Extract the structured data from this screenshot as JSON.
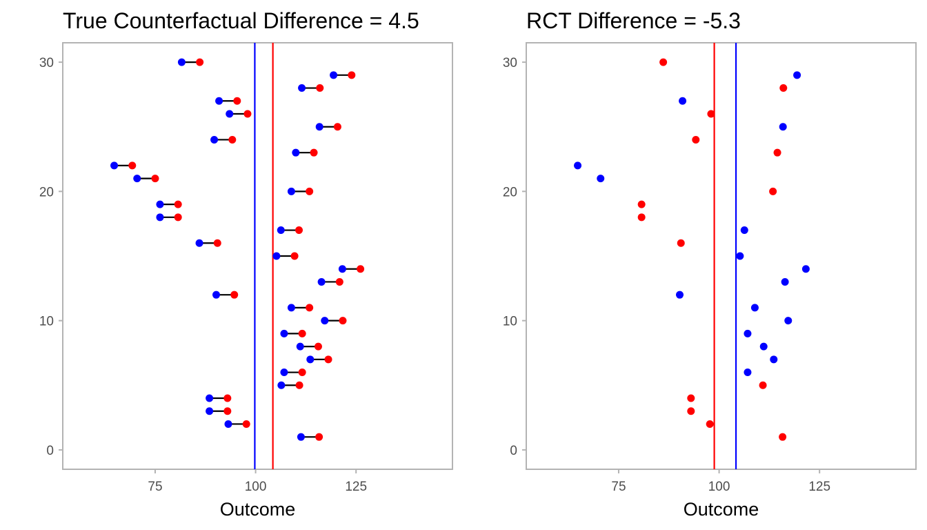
{
  "colors": {
    "control": "#0000ff",
    "treated": "#ff0000",
    "segment": "#000000",
    "frame": "#b3b3b3"
  },
  "chart_data": [
    {
      "type": "dumbbell",
      "title": "True Counterfactual Difference = 4.5",
      "xlabel": "Outcome",
      "ylabel": "",
      "xlim": [
        52,
        149
      ],
      "ylim": [
        -1.5,
        31.5
      ],
      "xticks": [
        75,
        100,
        125
      ],
      "yticks": [
        0,
        10,
        20,
        30
      ],
      "grid": false,
      "vlines": [
        {
          "x": 99.8,
          "color": "#0000ff"
        },
        {
          "x": 104.3,
          "color": "#ff0000"
        }
      ],
      "series": [
        {
          "color": "#0000ff",
          "points": [
            {
              "y": 1,
              "x": 111.3
            },
            {
              "y": 2,
              "x": 93.2
            },
            {
              "y": 3,
              "x": 88.5
            },
            {
              "y": 4,
              "x": 88.5
            },
            {
              "y": 5,
              "x": 106.4
            },
            {
              "y": 6,
              "x": 107.1
            },
            {
              "y": 7,
              "x": 113.6
            },
            {
              "y": 8,
              "x": 111.1
            },
            {
              "y": 9,
              "x": 107.1
            },
            {
              "y": 10,
              "x": 117.2
            },
            {
              "y": 11,
              "x": 108.9
            },
            {
              "y": 12,
              "x": 90.2
            },
            {
              "y": 13,
              "x": 116.4
            },
            {
              "y": 14,
              "x": 121.6
            },
            {
              "y": 15,
              "x": 105.2
            },
            {
              "y": 16,
              "x": 86.0
            },
            {
              "y": 17,
              "x": 106.3
            },
            {
              "y": 18,
              "x": 76.2
            },
            {
              "y": 19,
              "x": 76.2
            },
            {
              "y": 20,
              "x": 108.9
            },
            {
              "y": 21,
              "x": 70.5
            },
            {
              "y": 22,
              "x": 64.8
            },
            {
              "y": 23,
              "x": 110.0
            },
            {
              "y": 24,
              "x": 89.7
            },
            {
              "y": 25,
              "x": 115.9
            },
            {
              "y": 26,
              "x": 93.5
            },
            {
              "y": 27,
              "x": 90.9
            },
            {
              "y": 28,
              "x": 111.5
            },
            {
              "y": 29,
              "x": 119.4
            },
            {
              "y": 30,
              "x": 81.6
            }
          ]
        },
        {
          "color": "#ff0000",
          "points": [
            {
              "y": 1,
              "x": 115.8
            },
            {
              "y": 2,
              "x": 97.7
            },
            {
              "y": 3,
              "x": 93.0
            },
            {
              "y": 4,
              "x": 93.0
            },
            {
              "y": 5,
              "x": 110.9
            },
            {
              "y": 6,
              "x": 111.6
            },
            {
              "y": 7,
              "x": 118.1
            },
            {
              "y": 8,
              "x": 115.6
            },
            {
              "y": 9,
              "x": 111.6
            },
            {
              "y": 10,
              "x": 121.7
            },
            {
              "y": 11,
              "x": 113.4
            },
            {
              "y": 12,
              "x": 94.7
            },
            {
              "y": 13,
              "x": 120.9
            },
            {
              "y": 14,
              "x": 126.1
            },
            {
              "y": 15,
              "x": 109.7
            },
            {
              "y": 16,
              "x": 90.5
            },
            {
              "y": 17,
              "x": 110.8
            },
            {
              "y": 18,
              "x": 80.7
            },
            {
              "y": 19,
              "x": 80.7
            },
            {
              "y": 20,
              "x": 113.4
            },
            {
              "y": 21,
              "x": 75.0
            },
            {
              "y": 22,
              "x": 69.3
            },
            {
              "y": 23,
              "x": 114.5
            },
            {
              "y": 24,
              "x": 94.2
            },
            {
              "y": 25,
              "x": 120.4
            },
            {
              "y": 26,
              "x": 98.0
            },
            {
              "y": 27,
              "x": 95.4
            },
            {
              "y": 28,
              "x": 116.0
            },
            {
              "y": 29,
              "x": 123.9
            },
            {
              "y": 30,
              "x": 86.1
            }
          ]
        }
      ]
    },
    {
      "type": "scatter",
      "title": "RCT Difference = -5.3",
      "xlabel": "Outcome",
      "ylabel": "",
      "xlim": [
        52,
        149
      ],
      "ylim": [
        -1.5,
        31.5
      ],
      "xticks": [
        75,
        100,
        125
      ],
      "yticks": [
        0,
        10,
        20,
        30
      ],
      "grid": false,
      "vlines": [
        {
          "x": 98.8,
          "color": "#ff0000"
        },
        {
          "x": 104.2,
          "color": "#0000ff"
        }
      ],
      "series": [
        {
          "color": "#0000ff",
          "points": [
            {
              "y": 6,
              "x": 107.1
            },
            {
              "y": 7,
              "x": 113.6
            },
            {
              "y": 8,
              "x": 111.1
            },
            {
              "y": 9,
              "x": 107.1
            },
            {
              "y": 10,
              "x": 117.2
            },
            {
              "y": 11,
              "x": 108.9
            },
            {
              "y": 12,
              "x": 90.2
            },
            {
              "y": 13,
              "x": 116.4
            },
            {
              "y": 14,
              "x": 121.6
            },
            {
              "y": 15,
              "x": 105.2
            },
            {
              "y": 17,
              "x": 106.3
            },
            {
              "y": 21,
              "x": 70.5
            },
            {
              "y": 22,
              "x": 64.8
            },
            {
              "y": 25,
              "x": 115.9
            },
            {
              "y": 27,
              "x": 90.9
            },
            {
              "y": 29,
              "x": 119.4
            }
          ]
        },
        {
          "color": "#ff0000",
          "points": [
            {
              "y": 1,
              "x": 115.8
            },
            {
              "y": 2,
              "x": 97.7
            },
            {
              "y": 3,
              "x": 93.0
            },
            {
              "y": 4,
              "x": 93.0
            },
            {
              "y": 5,
              "x": 110.9
            },
            {
              "y": 16,
              "x": 90.5
            },
            {
              "y": 18,
              "x": 80.7
            },
            {
              "y": 19,
              "x": 80.7
            },
            {
              "y": 20,
              "x": 113.4
            },
            {
              "y": 23,
              "x": 114.5
            },
            {
              "y": 24,
              "x": 94.2
            },
            {
              "y": 26,
              "x": 98.0
            },
            {
              "y": 28,
              "x": 116.0
            },
            {
              "y": 30,
              "x": 86.1
            }
          ]
        }
      ]
    }
  ]
}
